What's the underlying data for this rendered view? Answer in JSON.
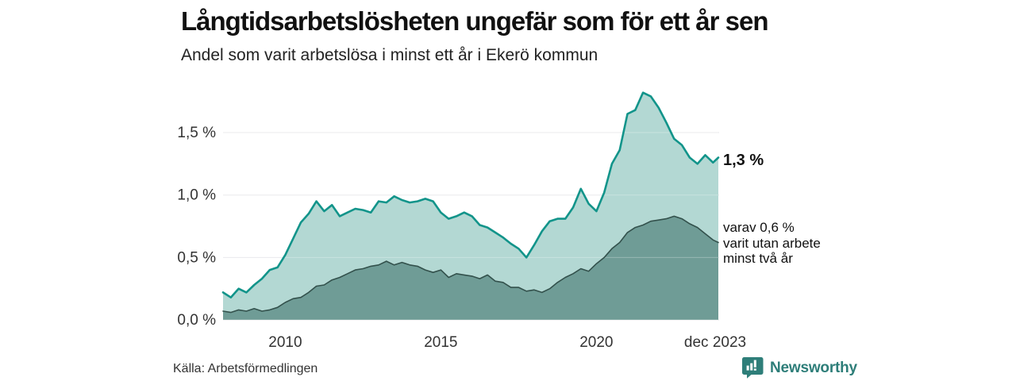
{
  "header": {
    "title": "Långtidsarbetslösheten ungefär som för ett år sen",
    "subtitle": "Andel som varit arbetslösa i minst ett år i Ekerö kommun"
  },
  "annotations": {
    "latest_total": "1,3 %",
    "two_year_lines": [
      "varav 0,6 %",
      "varit utan arbete",
      "minst två år"
    ]
  },
  "footer": {
    "source": "Källa: Arbetsförmedlingen",
    "brand": "Newsworthy"
  },
  "colors": {
    "total_line": "#12948a",
    "total_fill": "#b3d8d3",
    "two_year_line": "#33514c",
    "two_year_fill": "#6f9c96",
    "grid": "#e3e3e8",
    "axis_text": "#333333",
    "title_text": "#111111",
    "brand_teal": "#2e7e79"
  },
  "chart_data": {
    "type": "area",
    "title": "Långtidsarbetslösheten ungefär som för ett år sen",
    "subtitle": "Andel som varit arbetslösa i minst ett år i Ekerö kommun",
    "xlabel": "",
    "ylabel": "",
    "unit": "%",
    "grid": true,
    "x_domain": [
      2008,
      2023.92
    ],
    "ylim": [
      0,
      1.9
    ],
    "y_ticks": [
      {
        "value": 0.0,
        "label": "0,0 %"
      },
      {
        "value": 0.5,
        "label": "0,5 %"
      },
      {
        "value": 1.0,
        "label": "1,0 %"
      },
      {
        "value": 1.5,
        "label": "1,5 %"
      }
    ],
    "x_ticks": [
      {
        "value": 2010,
        "label": "2010"
      },
      {
        "value": 2015,
        "label": "2015"
      },
      {
        "value": 2020,
        "label": "2020"
      },
      {
        "value": 2023.92,
        "label": "dec 2023"
      }
    ],
    "series": [
      {
        "id": "total_minst_ett_ar",
        "end_label": "1,3 %",
        "latest_value": 1.3,
        "line_color": "#12948a",
        "fill_color": "#b3d8d3",
        "points": [
          [
            2008.0,
            0.22
          ],
          [
            2008.25,
            0.18
          ],
          [
            2008.5,
            0.25
          ],
          [
            2008.75,
            0.22
          ],
          [
            2009.0,
            0.28
          ],
          [
            2009.25,
            0.33
          ],
          [
            2009.5,
            0.4
          ],
          [
            2009.75,
            0.42
          ],
          [
            2010.0,
            0.52
          ],
          [
            2010.25,
            0.65
          ],
          [
            2010.5,
            0.78
          ],
          [
            2010.75,
            0.85
          ],
          [
            2011.0,
            0.95
          ],
          [
            2011.25,
            0.87
          ],
          [
            2011.5,
            0.92
          ],
          [
            2011.75,
            0.83
          ],
          [
            2012.0,
            0.86
          ],
          [
            2012.25,
            0.89
          ],
          [
            2012.5,
            0.88
          ],
          [
            2012.75,
            0.86
          ],
          [
            2013.0,
            0.95
          ],
          [
            2013.25,
            0.94
          ],
          [
            2013.5,
            0.99
          ],
          [
            2013.75,
            0.96
          ],
          [
            2014.0,
            0.94
          ],
          [
            2014.25,
            0.95
          ],
          [
            2014.5,
            0.97
          ],
          [
            2014.75,
            0.95
          ],
          [
            2015.0,
            0.86
          ],
          [
            2015.25,
            0.81
          ],
          [
            2015.5,
            0.83
          ],
          [
            2015.75,
            0.86
          ],
          [
            2016.0,
            0.83
          ],
          [
            2016.25,
            0.76
          ],
          [
            2016.5,
            0.74
          ],
          [
            2016.75,
            0.7
          ],
          [
            2017.0,
            0.66
          ],
          [
            2017.25,
            0.61
          ],
          [
            2017.5,
            0.57
          ],
          [
            2017.75,
            0.5
          ],
          [
            2018.0,
            0.6
          ],
          [
            2018.25,
            0.71
          ],
          [
            2018.5,
            0.79
          ],
          [
            2018.75,
            0.81
          ],
          [
            2019.0,
            0.81
          ],
          [
            2019.25,
            0.9
          ],
          [
            2019.5,
            1.05
          ],
          [
            2019.75,
            0.93
          ],
          [
            2020.0,
            0.87
          ],
          [
            2020.25,
            1.02
          ],
          [
            2020.5,
            1.25
          ],
          [
            2020.75,
            1.36
          ],
          [
            2021.0,
            1.65
          ],
          [
            2021.25,
            1.68
          ],
          [
            2021.5,
            1.82
          ],
          [
            2021.75,
            1.79
          ],
          [
            2022.0,
            1.7
          ],
          [
            2022.25,
            1.58
          ],
          [
            2022.5,
            1.45
          ],
          [
            2022.75,
            1.4
          ],
          [
            2023.0,
            1.3
          ],
          [
            2023.25,
            1.25
          ],
          [
            2023.5,
            1.32
          ],
          [
            2023.75,
            1.26
          ],
          [
            2023.92,
            1.3
          ]
        ]
      },
      {
        "id": "varav_minst_tva_ar",
        "end_label": "varav 0,6 % varit utan arbete minst två år",
        "latest_value": 0.6,
        "line_color": "#33514c",
        "fill_color": "#6f9c96",
        "points": [
          [
            2008.0,
            0.07
          ],
          [
            2008.25,
            0.06
          ],
          [
            2008.5,
            0.08
          ],
          [
            2008.75,
            0.07
          ],
          [
            2009.0,
            0.09
          ],
          [
            2009.25,
            0.07
          ],
          [
            2009.5,
            0.08
          ],
          [
            2009.75,
            0.1
          ],
          [
            2010.0,
            0.14
          ],
          [
            2010.25,
            0.17
          ],
          [
            2010.5,
            0.18
          ],
          [
            2010.75,
            0.22
          ],
          [
            2011.0,
            0.27
          ],
          [
            2011.25,
            0.28
          ],
          [
            2011.5,
            0.32
          ],
          [
            2011.75,
            0.34
          ],
          [
            2012.0,
            0.37
          ],
          [
            2012.25,
            0.4
          ],
          [
            2012.5,
            0.41
          ],
          [
            2012.75,
            0.43
          ],
          [
            2013.0,
            0.44
          ],
          [
            2013.25,
            0.47
          ],
          [
            2013.5,
            0.44
          ],
          [
            2013.75,
            0.46
          ],
          [
            2014.0,
            0.44
          ],
          [
            2014.25,
            0.43
          ],
          [
            2014.5,
            0.4
          ],
          [
            2014.75,
            0.38
          ],
          [
            2015.0,
            0.4
          ],
          [
            2015.25,
            0.34
          ],
          [
            2015.5,
            0.37
          ],
          [
            2015.75,
            0.36
          ],
          [
            2016.0,
            0.35
          ],
          [
            2016.25,
            0.33
          ],
          [
            2016.5,
            0.36
          ],
          [
            2016.75,
            0.31
          ],
          [
            2017.0,
            0.3
          ],
          [
            2017.25,
            0.26
          ],
          [
            2017.5,
            0.26
          ],
          [
            2017.75,
            0.23
          ],
          [
            2018.0,
            0.24
          ],
          [
            2018.25,
            0.22
          ],
          [
            2018.5,
            0.25
          ],
          [
            2018.75,
            0.3
          ],
          [
            2019.0,
            0.34
          ],
          [
            2019.25,
            0.37
          ],
          [
            2019.5,
            0.41
          ],
          [
            2019.75,
            0.39
          ],
          [
            2020.0,
            0.45
          ],
          [
            2020.25,
            0.5
          ],
          [
            2020.5,
            0.57
          ],
          [
            2020.75,
            0.62
          ],
          [
            2021.0,
            0.7
          ],
          [
            2021.25,
            0.74
          ],
          [
            2021.5,
            0.76
          ],
          [
            2021.75,
            0.79
          ],
          [
            2022.0,
            0.8
          ],
          [
            2022.25,
            0.81
          ],
          [
            2022.5,
            0.83
          ],
          [
            2022.75,
            0.81
          ],
          [
            2023.0,
            0.77
          ],
          [
            2023.25,
            0.74
          ],
          [
            2023.5,
            0.69
          ],
          [
            2023.75,
            0.64
          ],
          [
            2023.92,
            0.62
          ]
        ]
      }
    ],
    "source": "Källa: Arbetsförmedlingen"
  }
}
